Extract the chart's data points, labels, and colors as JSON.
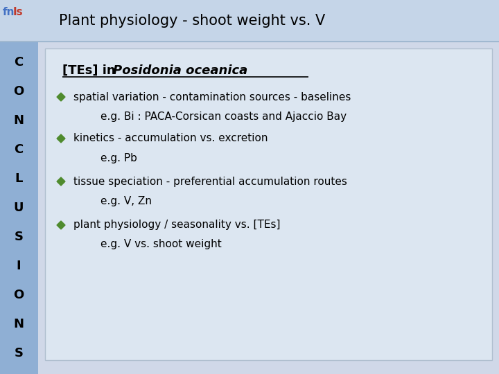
{
  "title": "Plant physiology - shoot weight vs. V",
  "header_part1": "[TEs] in ",
  "header_part2": "Posidonia oceanica",
  "bullet1": "spatial variation - contamination sources - baselines",
  "sub1": "e.g. Bi : PACA-Corsican coasts and Ajaccio Bay",
  "bullet2": "kinetics - accumulation vs. excretion",
  "sub2": "e.g. Pb",
  "bullet3": "tissue speciation - preferential accumulation routes",
  "sub3": "e.g. V, Zn",
  "bullet4": "plant physiology / seasonality vs. [TEs]",
  "sub4": "e.g. V vs. shoot weight",
  "sidebar_letters": [
    "C",
    "O",
    "N",
    "C",
    "L",
    "U",
    "S",
    "I",
    "O",
    "N",
    "S"
  ],
  "bg_slide": "#d0d8e8",
  "title_color": "#000000",
  "sidebar_bg": "#8fafd4",
  "content_box_bg": "#dce6f1",
  "bullet_diamond_color": "#4f8b2e",
  "text_color": "#000000",
  "title_strip_bg": "#c5d5e8"
}
